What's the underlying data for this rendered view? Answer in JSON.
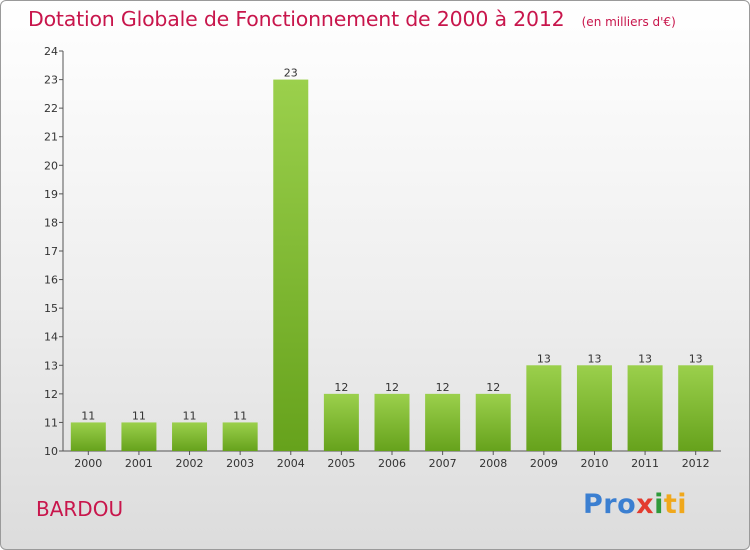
{
  "chart_data": {
    "type": "bar",
    "title": "Dotation Globale de Fonctionnement de 2000 à 2012",
    "unit_note": "(en milliers d'€)",
    "categories": [
      "2000",
      "2001",
      "2002",
      "2003",
      "2004",
      "2005",
      "2006",
      "2007",
      "2008",
      "2009",
      "2010",
      "2011",
      "2012"
    ],
    "values": [
      11,
      11,
      11,
      11,
      23,
      12,
      12,
      12,
      12,
      13,
      13,
      13,
      13
    ],
    "ylim": [
      10,
      24
    ],
    "yticks": [
      10,
      11,
      12,
      13,
      14,
      15,
      16,
      17,
      18,
      19,
      20,
      21,
      22,
      23,
      24
    ],
    "data_labels": true,
    "grid": false,
    "bar_color": "#7ab830"
  },
  "commune": "BARDOU",
  "logo": {
    "parts": [
      "Pro",
      "x",
      "i",
      "ti"
    ]
  },
  "colors": {
    "title": "#c8164c",
    "axis": "#333333",
    "bar_light": "#9bd04c",
    "bar_dark": "#66a21c"
  }
}
